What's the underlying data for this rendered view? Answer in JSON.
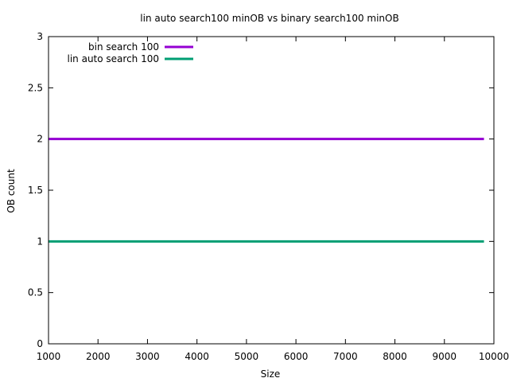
{
  "chart_data": {
    "type": "line",
    "title": "lin auto search100 minOB vs binary search100 minOB",
    "xlabel": "Size",
    "ylabel": "OB count",
    "xlim": [
      1000,
      10000
    ],
    "ylim": [
      0,
      3
    ],
    "xticks": [
      1000,
      2000,
      3000,
      4000,
      5000,
      6000,
      7000,
      8000,
      9000,
      10000
    ],
    "yticks": [
      0,
      0.5,
      1,
      1.5,
      2,
      2.5,
      3
    ],
    "grid": false,
    "legend_position": "top-left",
    "series": [
      {
        "name": "bin search 100",
        "color": "#9400d3",
        "x": [
          1000,
          9800
        ],
        "y": [
          2,
          2
        ]
      },
      {
        "name": "lin auto search 100",
        "color": "#009e73",
        "x": [
          1000,
          9800
        ],
        "y": [
          1,
          1
        ]
      }
    ]
  }
}
